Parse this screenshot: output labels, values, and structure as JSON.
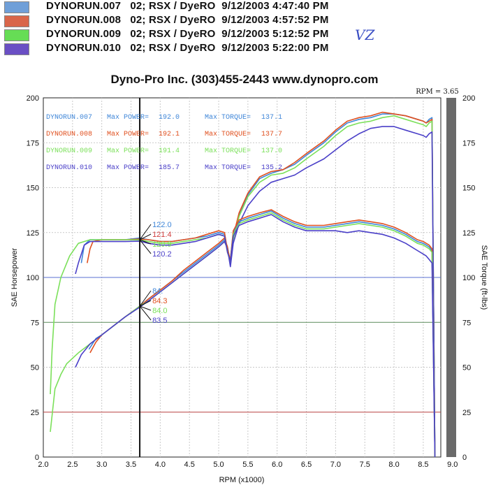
{
  "legend": [
    {
      "label": "DYNORUN.007   02; RSX / DyeRO  9/12/2003 4:47:40 PM",
      "color": "#6f9fd8"
    },
    {
      "label": "DYNORUN.008   02; RSX / DyeRO  9/12/2003 4:57:52 PM",
      "color": "#d9664a"
    },
    {
      "label": "DYNORUN.009   02; RSX / DyeRO  9/12/2003 5:12:52 PM",
      "color": "#66dd55"
    },
    {
      "label": "DYNORUN.010   02; RSX / DyeRO  9/12/2003 5:22:00 PM",
      "color": "#6a4fc4"
    }
  ],
  "handwritten_note": "VZ",
  "chart_data": {
    "type": "line",
    "title": "Dyno-Pro Inc.    (303)455-2443    www.dynopro.com",
    "xlabel": "RPM (x1000)",
    "ylabel": "SAE Horsepower",
    "ylabel_right": "SAE Torque (ft-lbs)",
    "xlim": [
      2.0,
      8.8
    ],
    "ylim": [
      0,
      200
    ],
    "x_ticks": [
      "2.0",
      "2.5",
      "3.0",
      "3.5",
      "4.0",
      "4.5",
      "5.0",
      "5.5",
      "6.0",
      "6.5",
      "7.0",
      "7.5",
      "8.0",
      "8.5",
      "9.0"
    ],
    "y_ticks": [
      "0",
      "25",
      "50",
      "75",
      "100",
      "125",
      "150",
      "175",
      "200"
    ],
    "cursor": {
      "x": 3.65,
      "label": "RPM = 3.65"
    },
    "summary": [
      {
        "run": "DYNORUN.007",
        "power_label": "Max POWER=",
        "power": "192.0",
        "torque_label": "Max TORQUE=",
        "torque": "137.1",
        "color": "#3f86d8"
      },
      {
        "run": "DYNORUN.008",
        "power_label": "Max POWER=",
        "power": "192.1",
        "torque_label": "Max TORQUE=",
        "torque": "137.7",
        "color": "#e0501f"
      },
      {
        "run": "DYNORUN.009",
        "power_label": "Max POWER=",
        "power": "191.4",
        "torque_label": "Max TORQUE=",
        "torque": "137.0",
        "color": "#7be05a"
      },
      {
        "run": "DYNORUN.010",
        "power_label": "Max POWER=",
        "power": "185.7",
        "torque_label": "Max TORQUE=",
        "torque": "135.2",
        "color": "#4a3fc8"
      }
    ],
    "cursor_torque": [
      {
        "value": "122.0",
        "color": "#3f86d8"
      },
      {
        "value": "121.4",
        "color": "#d04040"
      },
      {
        "value": "120.9",
        "color": "#7be05a"
      },
      {
        "value": "120.2",
        "color": "#4a3fc8"
      }
    ],
    "cursor_power": [
      {
        "value": "84.",
        "color": "#3f86d8"
      },
      {
        "value": "84.3",
        "color": "#e0501f"
      },
      {
        "value": "84.0",
        "color": "#7be05a"
      },
      {
        "value": "83.5",
        "color": "#4a3fc8"
      }
    ],
    "series": [
      {
        "name": "DYNORUN.007 Power",
        "color": "#3f86d8",
        "x": [
          2.78,
          2.9,
          3.0,
          3.2,
          3.4,
          3.65,
          3.8,
          4.0,
          4.2,
          4.4,
          4.6,
          4.8,
          5.0,
          5.1,
          5.15,
          5.2,
          5.25,
          5.35,
          5.5,
          5.7,
          5.9,
          6.1,
          6.3,
          6.5,
          6.8,
          7.0,
          7.2,
          7.4,
          7.6,
          7.8,
          8.0,
          8.2,
          8.4,
          8.5,
          8.55,
          8.6,
          8.65,
          8.7
        ],
        "y": [
          60,
          66,
          68,
          73,
          78,
          84,
          88,
          93,
          98,
          103,
          108,
          113,
          118,
          121,
          117,
          108,
          122,
          135,
          146,
          155,
          158,
          160,
          163,
          168,
          175,
          181,
          186,
          188,
          189,
          191,
          191,
          190,
          188,
          187,
          186,
          188,
          189,
          0
        ]
      },
      {
        "name": "DYNORUN.008 Power",
        "color": "#e0501f",
        "x": [
          2.8,
          2.9,
          3.0,
          3.2,
          3.4,
          3.65,
          3.8,
          4.0,
          4.2,
          4.4,
          4.6,
          4.8,
          5.0,
          5.1,
          5.15,
          5.2,
          5.25,
          5.35,
          5.5,
          5.7,
          5.9,
          6.1,
          6.3,
          6.5,
          6.8,
          7.0,
          7.2,
          7.4,
          7.6,
          7.8,
          8.0,
          8.2,
          8.4,
          8.5,
          8.55,
          8.6,
          8.65,
          8.7
        ],
        "y": [
          58,
          64,
          68,
          73,
          78,
          84,
          88,
          93,
          98,
          104,
          109,
          114,
          119,
          122,
          117,
          108,
          123,
          136,
          147,
          156,
          159,
          160,
          164,
          169,
          176,
          182,
          187,
          189,
          190,
          192,
          191,
          190,
          188,
          187,
          186,
          187,
          188,
          0
        ]
      },
      {
        "name": "DYNORUN.009 Power",
        "color": "#7be05a",
        "x": [
          2.12,
          2.2,
          2.3,
          2.4,
          2.6,
          2.8,
          3.0,
          3.2,
          3.4,
          3.65,
          3.8,
          4.0,
          4.2,
          4.4,
          4.6,
          4.8,
          5.0,
          5.1,
          5.15,
          5.2,
          5.25,
          5.35,
          5.5,
          5.7,
          5.9,
          6.1,
          6.3,
          6.5,
          6.8,
          7.0,
          7.2,
          7.4,
          7.6,
          7.8,
          8.0,
          8.2,
          8.4,
          8.5,
          8.55,
          8.6,
          8.65,
          8.7
        ],
        "y": [
          14,
          38,
          46,
          52,
          58,
          63,
          68,
          73,
          78,
          84,
          87,
          92,
          97,
          102,
          107,
          112,
          117,
          120,
          116,
          107,
          121,
          134,
          145,
          153,
          157,
          158,
          161,
          166,
          173,
          179,
          184,
          186,
          187,
          189,
          190,
          188,
          186,
          185,
          184,
          186,
          187,
          0
        ]
      },
      {
        "name": "DYNORUN.010 Power",
        "color": "#4a3fc8",
        "x": [
          2.55,
          2.65,
          2.8,
          3.0,
          3.2,
          3.4,
          3.65,
          3.8,
          4.0,
          4.2,
          4.4,
          4.6,
          4.8,
          5.0,
          5.1,
          5.15,
          5.2,
          5.25,
          5.35,
          5.5,
          5.7,
          5.9,
          6.1,
          6.3,
          6.5,
          6.8,
          7.0,
          7.2,
          7.4,
          7.6,
          7.8,
          8.0,
          8.2,
          8.4,
          8.5,
          8.55,
          8.6,
          8.65,
          8.7
        ],
        "y": [
          50,
          57,
          63,
          68,
          73,
          78,
          83.5,
          87,
          92,
          97,
          102,
          107,
          112,
          117,
          120,
          116,
          106,
          119,
          130,
          140,
          148,
          153,
          155,
          157,
          161,
          166,
          171,
          176,
          180,
          183,
          184,
          184,
          182,
          180,
          179,
          178,
          180,
          181,
          0
        ]
      },
      {
        "name": "DYNORUN.007 Torque",
        "color": "#3f86d8",
        "x": [
          2.65,
          2.7,
          2.8,
          3.0,
          3.2,
          3.4,
          3.65,
          3.8,
          4.0,
          4.2,
          4.4,
          4.6,
          4.8,
          5.0,
          5.1,
          5.15,
          5.2,
          5.25,
          5.35,
          5.5,
          5.7,
          5.9,
          6.1,
          6.3,
          6.5,
          6.8,
          7.0,
          7.2,
          7.4,
          7.6,
          7.8,
          8.0,
          8.2,
          8.4,
          8.5,
          8.55,
          8.6,
          8.65,
          8.7
        ],
        "y": [
          108,
          118,
          121,
          121,
          121,
          121,
          122,
          121,
          120,
          120,
          121,
          122,
          123,
          125,
          124,
          115,
          110,
          125,
          131,
          133,
          135,
          137,
          133,
          130,
          128,
          128,
          129,
          130,
          131,
          130,
          129,
          127,
          124,
          120,
          119,
          118,
          117,
          115,
          0
        ]
      },
      {
        "name": "DYNORUN.008 Torque",
        "color": "#e0501f",
        "x": [
          2.75,
          2.8,
          2.85,
          3.0,
          3.2,
          3.4,
          3.65,
          3.8,
          4.0,
          4.2,
          4.4,
          4.6,
          4.8,
          5.0,
          5.1,
          5.15,
          5.2,
          5.25,
          5.35,
          5.5,
          5.7,
          5.9,
          6.1,
          6.3,
          6.5,
          6.8,
          7.0,
          7.2,
          7.4,
          7.6,
          7.8,
          8.0,
          8.2,
          8.4,
          8.5,
          8.55,
          8.6,
          8.65,
          8.7
        ],
        "y": [
          108,
          116,
          120,
          121,
          121,
          121,
          121.4,
          121,
          120,
          120,
          121,
          122,
          124,
          126,
          125,
          115,
          110,
          126,
          132,
          134,
          136,
          137.7,
          134,
          131,
          129,
          129,
          130,
          131,
          132,
          131,
          130,
          128,
          125,
          121,
          120,
          119,
          118,
          116,
          0
        ]
      },
      {
        "name": "DYNORUN.009 Torque",
        "color": "#7be05a",
        "x": [
          2.12,
          2.15,
          2.2,
          2.3,
          2.45,
          2.6,
          2.8,
          3.0,
          3.2,
          3.4,
          3.65,
          3.8,
          4.0,
          4.2,
          4.4,
          4.6,
          4.8,
          5.0,
          5.1,
          5.15,
          5.2,
          5.25,
          5.35,
          5.5,
          5.7,
          5.9,
          6.1,
          6.3,
          6.5,
          6.8,
          7.0,
          7.2,
          7.4,
          7.6,
          7.8,
          8.0,
          8.2,
          8.4,
          8.5,
          8.55,
          8.6,
          8.65,
          8.7
        ],
        "y": [
          35,
          60,
          85,
          100,
          112,
          119,
          121,
          121,
          121,
          121,
          120.9,
          120,
          119,
          119,
          120,
          121,
          122,
          124,
          123,
          114,
          109,
          124,
          130,
          132,
          134,
          136,
          132,
          129,
          127,
          127,
          128,
          129,
          130,
          129,
          128,
          126,
          123,
          119,
          118,
          117,
          116,
          114,
          0
        ]
      },
      {
        "name": "DYNORUN.010 Torque",
        "color": "#4a3fc8",
        "x": [
          2.55,
          2.6,
          2.7,
          2.8,
          3.0,
          3.2,
          3.4,
          3.65,
          3.8,
          4.0,
          4.2,
          4.4,
          4.6,
          4.8,
          5.0,
          5.1,
          5.15,
          5.2,
          5.25,
          5.35,
          5.5,
          5.7,
          5.9,
          6.1,
          6.3,
          6.5,
          6.8,
          7.0,
          7.2,
          7.4,
          7.6,
          7.8,
          8.0,
          8.2,
          8.4,
          8.5,
          8.55,
          8.6,
          8.65,
          8.7
        ],
        "y": [
          102,
          108,
          118,
          120,
          120,
          120,
          120,
          120.2,
          119,
          118,
          118,
          119,
          120,
          122,
          124,
          123,
          114,
          109,
          123,
          129,
          131,
          133,
          135,
          131,
          128,
          126,
          126,
          126,
          125,
          126,
          125,
          124,
          122,
          119,
          115,
          113,
          112,
          110,
          108,
          0
        ]
      }
    ]
  }
}
